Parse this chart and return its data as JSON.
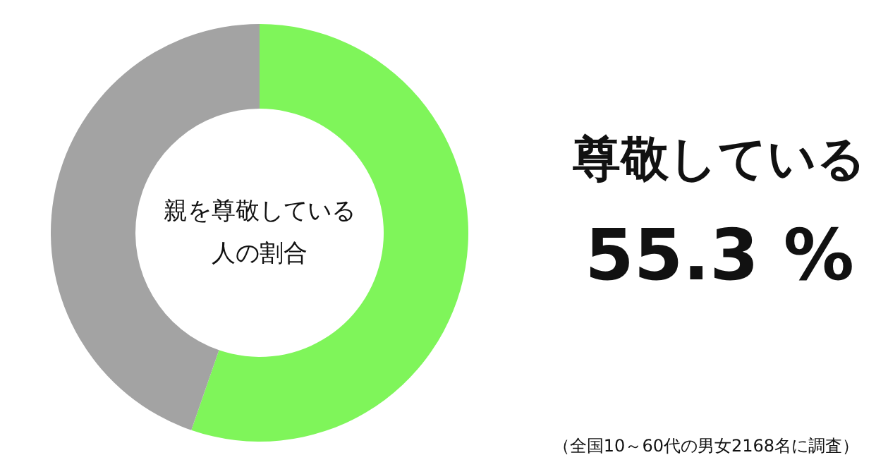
{
  "chart_data": {
    "type": "donut",
    "title": "親を尊敬している人の割合",
    "categories": [
      "尊敬している",
      null
    ],
    "values": [
      55.3,
      44.7
    ],
    "colors": [
      "#7ff55a",
      "#a3a3a3"
    ],
    "value_labels": [
      "55.3 %",
      null
    ],
    "annotations": [
      "（全国10～60代の男女2168名に調査）"
    ]
  }
}
